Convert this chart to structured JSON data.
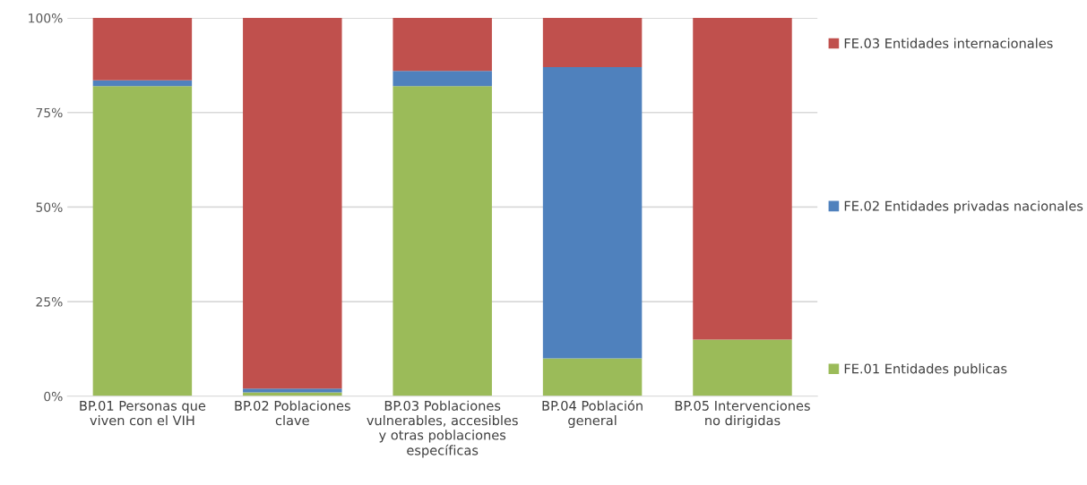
{
  "chart_data": {
    "type": "bar",
    "stacked": true,
    "categories": [
      "BP.01 Personas que\nviven con el VIH",
      "BP.02 Poblaciones\nclave",
      "BP.03 Poblaciones\nvulnerables, accesibles\ny otras poblaciones\nespecíficas",
      "BP.04 Población\ngeneral",
      "BP.05 Intervenciones\nno dirigidas"
    ],
    "series": [
      {
        "name": "FE.01 Entidades publicas",
        "color": "#9bbb59",
        "values": [
          82,
          1,
          82,
          10,
          15
        ]
      },
      {
        "name": "FE.02 Entidades privadas nacionales",
        "color": "#4f81bd",
        "values": [
          1.5,
          1,
          4,
          77,
          0
        ]
      },
      {
        "name": "FE.03 Entidades internacionales",
        "color": "#c0504d",
        "values": [
          16.5,
          98,
          14,
          13,
          85
        ]
      }
    ],
    "ylim": [
      0,
      100
    ],
    "yticks": [
      {
        "value": 0,
        "label": "0%"
      },
      {
        "value": 25,
        "label": "25%"
      },
      {
        "value": 50,
        "label": "50%"
      },
      {
        "value": 75,
        "label": "75%"
      },
      {
        "value": 100,
        "label": "100%"
      }
    ],
    "grid": "y",
    "legend": "right"
  }
}
